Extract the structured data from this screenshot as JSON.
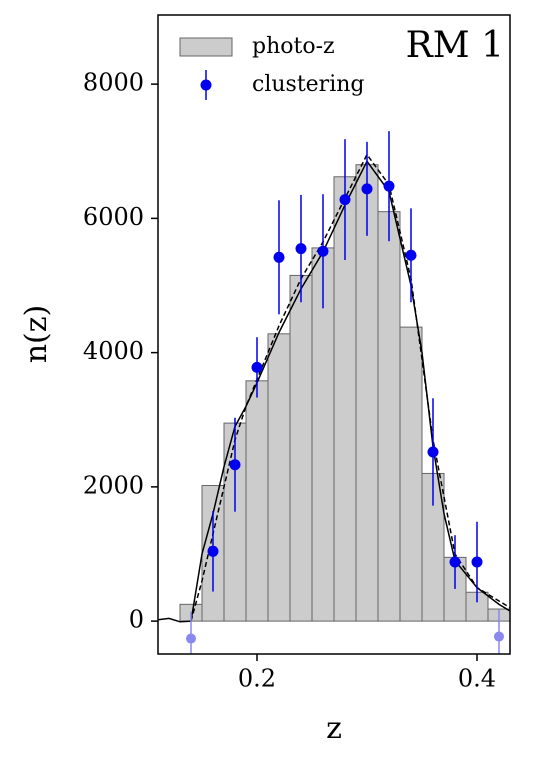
{
  "chart_data": {
    "type": "histogram",
    "annotation": "RM 1",
    "xlabel": "z",
    "ylabel": "n(z)",
    "xlim": [
      0.11,
      0.43
    ],
    "ylim": [
      -490,
      9030
    ],
    "xticks": [
      0.2,
      0.4
    ],
    "yticks": [
      0,
      2000,
      4000,
      6000,
      8000
    ],
    "histogram": {
      "name": "photo-z",
      "color": "#cccccc",
      "edgecolor": "#666666",
      "bins": [
        0.13,
        0.15,
        0.17,
        0.19,
        0.21,
        0.23,
        0.25,
        0.27,
        0.29,
        0.31,
        0.33,
        0.35,
        0.37,
        0.39,
        0.41,
        0.43
      ],
      "values": [
        250,
        2020,
        2950,
        3580,
        4280,
        5150,
        5560,
        6620,
        6800,
        6100,
        4380,
        2200,
        950,
        430,
        180
      ]
    },
    "points": {
      "name": "clustering",
      "color": "#0000ee",
      "x": [
        0.16,
        0.18,
        0.2,
        0.22,
        0.24,
        0.26,
        0.28,
        0.3,
        0.32,
        0.34,
        0.36,
        0.38,
        0.4
      ],
      "values": [
        1040,
        2330,
        3780,
        5420,
        5550,
        5510,
        6280,
        6440,
        6480,
        5450,
        2520,
        880,
        880
      ],
      "errors": [
        600,
        700,
        450,
        850,
        800,
        850,
        900,
        700,
        820,
        700,
        800,
        400,
        600
      ]
    },
    "faded_points": {
      "color": "#8888f0",
      "x": [
        0.14,
        0.42
      ],
      "values": [
        -260,
        -230
      ],
      "errors": [
        400,
        400
      ]
    },
    "lines": [
      {
        "color": "#000000",
        "dashed": false,
        "x": [
          0.11,
          0.12,
          0.13,
          0.14,
          0.15,
          0.16,
          0.17,
          0.18,
          0.19,
          0.2,
          0.22,
          0.24,
          0.26,
          0.28,
          0.3,
          0.32,
          0.34,
          0.35,
          0.36,
          0.37,
          0.38,
          0.4,
          0.42,
          0.43
        ],
        "values": [
          20,
          40,
          -10,
          0,
          1000,
          1600,
          2300,
          2900,
          3200,
          3550,
          4300,
          4950,
          5500,
          6200,
          6850,
          6400,
          5000,
          4000,
          2600,
          1600,
          900,
          500,
          250,
          150
        ]
      },
      {
        "color": "#000000",
        "dashed": true,
        "x": [
          0.14,
          0.15,
          0.16,
          0.17,
          0.18,
          0.19,
          0.2,
          0.22,
          0.24,
          0.26,
          0.28,
          0.3,
          0.32,
          0.34,
          0.36,
          0.38,
          0.4,
          0.42,
          0.43
        ],
        "values": [
          0,
          600,
          1300,
          2000,
          2700,
          3200,
          3600,
          4400,
          5100,
          5650,
          6300,
          6950,
          6500,
          5100,
          2700,
          1000,
          500,
          300,
          200
        ]
      }
    ]
  }
}
